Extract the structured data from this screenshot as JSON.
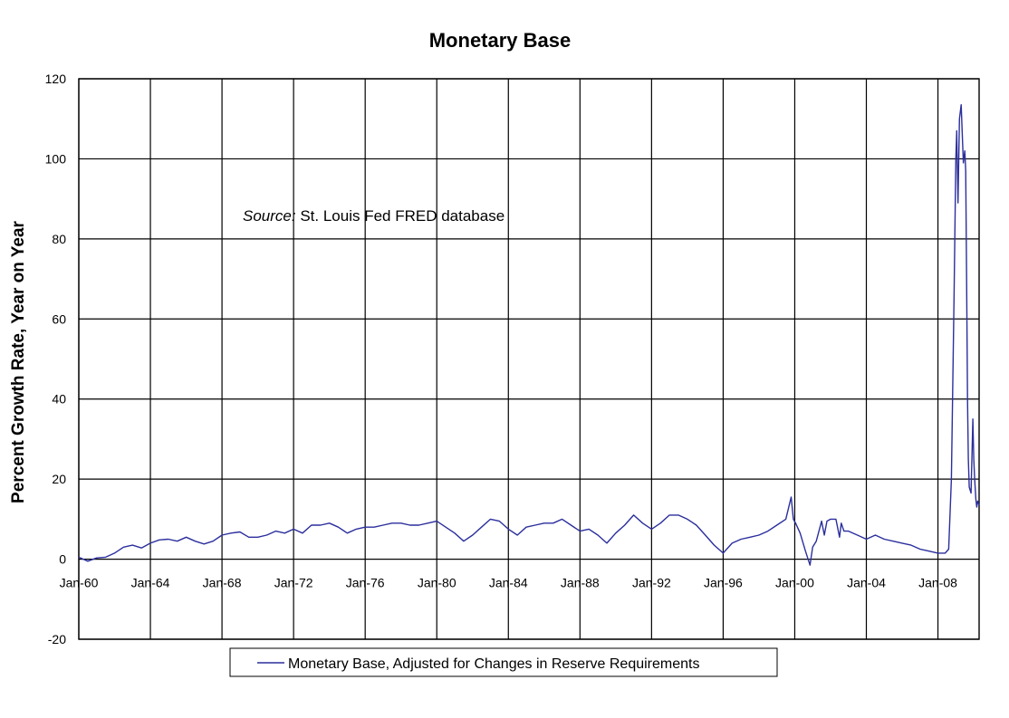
{
  "chart_data": {
    "type": "line",
    "title": "Monetary Base",
    "xlabel": "",
    "ylabel": "Percent Growth Rate, Year on Year",
    "ylim": [
      -20,
      120
    ],
    "yticks": [
      -20,
      0,
      20,
      40,
      60,
      80,
      100,
      120
    ],
    "xlim": [
      1960.0,
      2010.3
    ],
    "xticks": [
      {
        "x": 1960,
        "label": "Jan-60"
      },
      {
        "x": 1964,
        "label": "Jan-64"
      },
      {
        "x": 1968,
        "label": "Jan-68"
      },
      {
        "x": 1972,
        "label": "Jan-72"
      },
      {
        "x": 1976,
        "label": "Jan-76"
      },
      {
        "x": 1980,
        "label": "Jan-80"
      },
      {
        "x": 1984,
        "label": "Jan-84"
      },
      {
        "x": 1988,
        "label": "Jan-88"
      },
      {
        "x": 1992,
        "label": "Jan-92"
      },
      {
        "x": 1996,
        "label": "Jan-96"
      },
      {
        "x": 2000,
        "label": "Jan-00"
      },
      {
        "x": 2004,
        "label": "Jan-04"
      },
      {
        "x": 2008,
        "label": "Jan-08"
      }
    ],
    "grid": true,
    "legend_position": "bottom",
    "series_color": "#2b2f9c",
    "annotation": {
      "italic": "Source:",
      "text": " St. Louis Fed FRED database"
    },
    "series": [
      {
        "name": "Monetary Base, Adjusted for Changes in Reserve Requirements",
        "x": [
          1960.0,
          1960.5,
          1961.0,
          1961.5,
          1962.0,
          1962.5,
          1963.0,
          1963.5,
          1964.0,
          1964.5,
          1965.0,
          1965.5,
          1966.0,
          1966.5,
          1967.0,
          1967.5,
          1968.0,
          1968.5,
          1969.0,
          1969.5,
          1970.0,
          1970.5,
          1971.0,
          1971.5,
          1972.0,
          1972.5,
          1973.0,
          1973.5,
          1974.0,
          1974.5,
          1975.0,
          1975.5,
          1976.0,
          1976.5,
          1977.0,
          1977.5,
          1978.0,
          1978.5,
          1979.0,
          1979.5,
          1980.0,
          1980.5,
          1981.0,
          1981.5,
          1982.0,
          1982.5,
          1983.0,
          1983.5,
          1984.0,
          1984.5,
          1985.0,
          1985.5,
          1986.0,
          1986.5,
          1987.0,
          1987.5,
          1988.0,
          1988.5,
          1989.0,
          1989.5,
          1990.0,
          1990.5,
          1991.0,
          1991.5,
          1992.0,
          1992.5,
          1993.0,
          1993.5,
          1994.0,
          1994.5,
          1995.0,
          1995.5,
          1996.0,
          1996.5,
          1997.0,
          1997.5,
          1998.0,
          1998.5,
          1999.0,
          1999.5,
          1999.8,
          1999.92,
          2000.05,
          2000.3,
          2000.6,
          2000.85,
          2001.0,
          2001.2,
          2001.5,
          2001.65,
          2001.8,
          2002.0,
          2002.3,
          2002.5,
          2002.6,
          2002.75,
          2003.0,
          2003.5,
          2004.0,
          2004.5,
          2005.0,
          2005.5,
          2006.0,
          2006.5,
          2007.0,
          2007.5,
          2008.0,
          2008.4,
          2008.6,
          2008.75,
          2008.9,
          2009.0,
          2009.05,
          2009.12,
          2009.2,
          2009.3,
          2009.42,
          2009.5,
          2009.55,
          2009.6,
          2009.65,
          2009.7,
          2009.75,
          2009.85,
          2009.95,
          2010.0,
          2010.05,
          2010.12,
          2010.17,
          2010.22,
          2010.3
        ],
        "values": [
          0.5,
          -0.5,
          0.3,
          0.5,
          1.5,
          3.0,
          3.5,
          2.8,
          4.0,
          4.8,
          5.0,
          4.5,
          5.5,
          4.5,
          3.8,
          4.5,
          6.0,
          6.5,
          6.8,
          5.5,
          5.5,
          6.0,
          7.0,
          6.5,
          7.5,
          6.5,
          8.5,
          8.5,
          9.0,
          8.0,
          6.5,
          7.5,
          8.0,
          8.0,
          8.5,
          9.0,
          9.0,
          8.5,
          8.5,
          9.0,
          9.5,
          8.0,
          6.5,
          4.5,
          6.0,
          8.0,
          10.0,
          9.5,
          7.5,
          6.0,
          8.0,
          8.5,
          9.0,
          9.0,
          10.0,
          8.5,
          7.0,
          7.5,
          6.0,
          4.0,
          6.5,
          8.5,
          11.0,
          9.0,
          7.5,
          9.0,
          11.0,
          11.0,
          10.0,
          8.5,
          6.0,
          3.5,
          1.5,
          4.0,
          5.0,
          5.5,
          6.0,
          7.0,
          8.5,
          10.0,
          15.5,
          10.0,
          9.0,
          6.5,
          2.0,
          -1.5,
          3.0,
          4.5,
          9.5,
          6.0,
          9.5,
          10.0,
          10.0,
          5.5,
          9.0,
          7.0,
          7.0,
          6.0,
          5.0,
          6.0,
          5.0,
          4.5,
          4.0,
          3.5,
          2.5,
          2.0,
          1.5,
          1.5,
          2.5,
          20.0,
          65.0,
          100.0,
          107.0,
          89.0,
          110.0,
          113.5,
          99.0,
          102.0,
          97.0,
          70.0,
          40.0,
          25.0,
          18.0,
          16.5,
          35.0,
          25.0,
          20.0,
          15.0,
          13.0,
          14.5,
          13.5
        ]
      }
    ]
  }
}
